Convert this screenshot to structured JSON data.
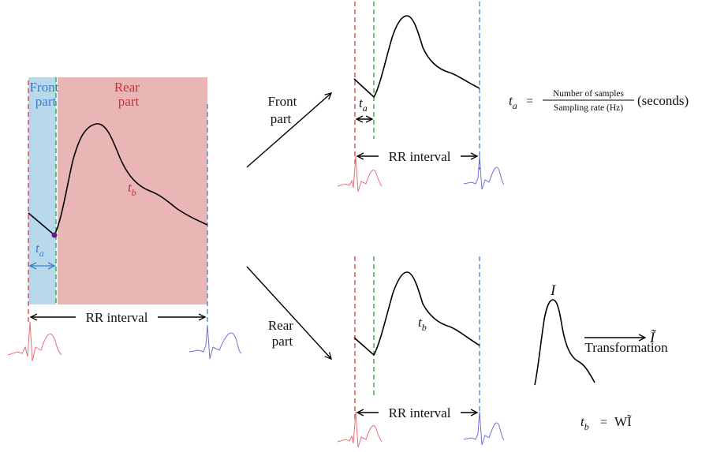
{
  "left_panel": {
    "front_label_line1": "Front",
    "front_label_line2": "part",
    "rear_label_line1": "Rear",
    "rear_label_line2": "part",
    "ta_symbol": "t",
    "ta_subscript": "a",
    "tb_symbol": "t",
    "tb_subscript": "b",
    "rr_interval": "RR interval",
    "colors": {
      "front_region": "#b8d8ec",
      "rear_region": "#e9b5b5",
      "front_text": "#3a7ec8",
      "rear_text": "#c8303a"
    }
  },
  "top_branch": {
    "label_line1": "Front",
    "label_line2": "part",
    "ta_symbol": "t",
    "ta_subscript": "a",
    "rr_interval": "RR interval"
  },
  "bottom_branch": {
    "label_line1": "Rear",
    "label_line2": "part",
    "tb_symbol": "t",
    "tb_subscript": "b",
    "rr_interval": "RR interval"
  },
  "formula_ta": {
    "lhs_symbol": "t",
    "lhs_subscript": "a",
    "equals": "=",
    "numerator": "Number of samples",
    "denominator": "Sampling rate (Hz)",
    "unit": "(seconds)"
  },
  "transformation": {
    "signal_label": "I",
    "output_label": "Ĩ",
    "arrow_label": "Transformation"
  },
  "formula_tb": {
    "lhs_symbol": "t",
    "lhs_subscript": "b",
    "equals": "=",
    "rhs": "WĨ"
  }
}
